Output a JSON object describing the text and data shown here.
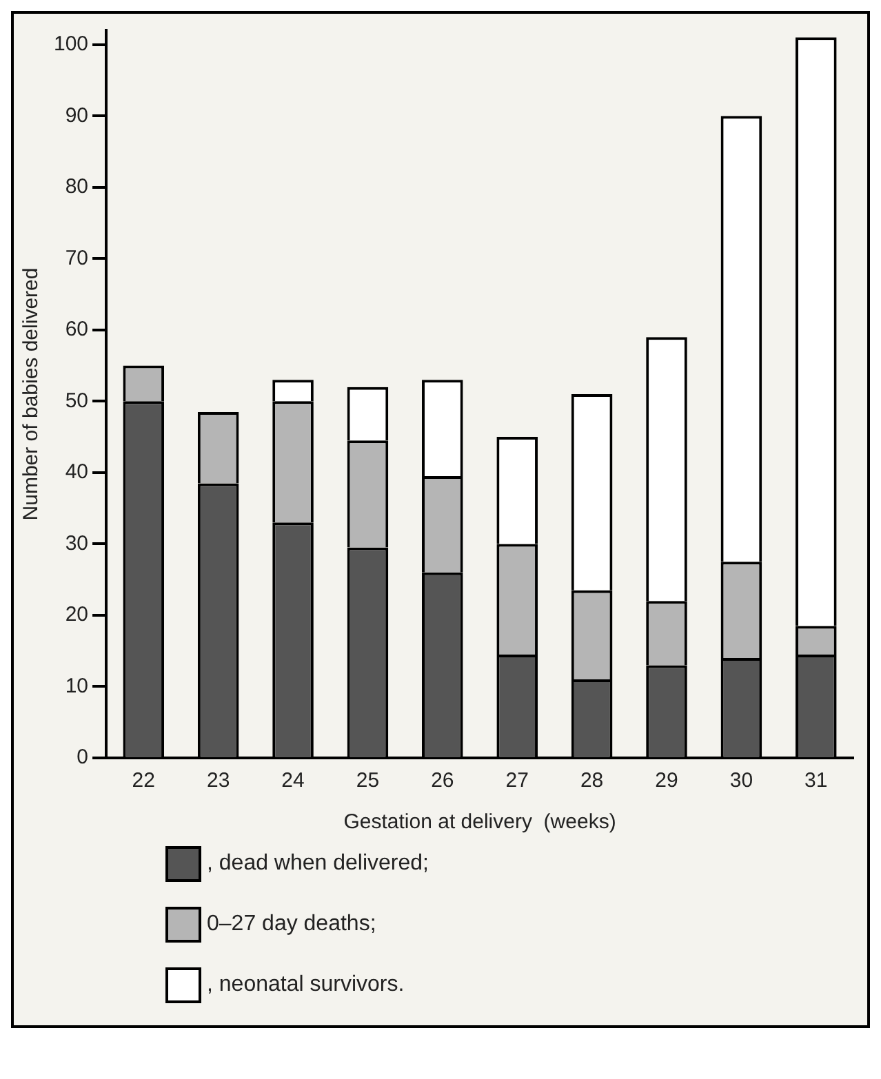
{
  "chart_data": {
    "type": "bar",
    "stacked": true,
    "xlabel": "Gestation at delivery  (weeks)",
    "ylabel": "Number of babies delivered",
    "categories": [
      "22",
      "23",
      "24",
      "25",
      "26",
      "27",
      "28",
      "29",
      "30",
      "31"
    ],
    "series": [
      {
        "name": ", dead when delivered;",
        "color": "#555555",
        "values": [
          50,
          38.5,
          33,
          29.5,
          26,
          14.5,
          11,
          13,
          14,
          14.5
        ]
      },
      {
        "name": "0–27 day deaths;",
        "color": "#b5b5b5",
        "values": [
          5,
          10,
          17,
          15,
          13.5,
          15.5,
          12.5,
          9,
          13.5,
          4
        ]
      },
      {
        "name": ", neonatal survivors.",
        "color": "#ffffff",
        "values": [
          0,
          0,
          3,
          7.5,
          13.5,
          15,
          27.5,
          37,
          62.5,
          82.5
        ]
      }
    ],
    "ylim": [
      0,
      102
    ],
    "yticks": [
      0,
      10,
      20,
      30,
      40,
      50,
      60,
      70,
      80,
      90,
      100
    ],
    "grid": false,
    "legend": "bottom left"
  }
}
